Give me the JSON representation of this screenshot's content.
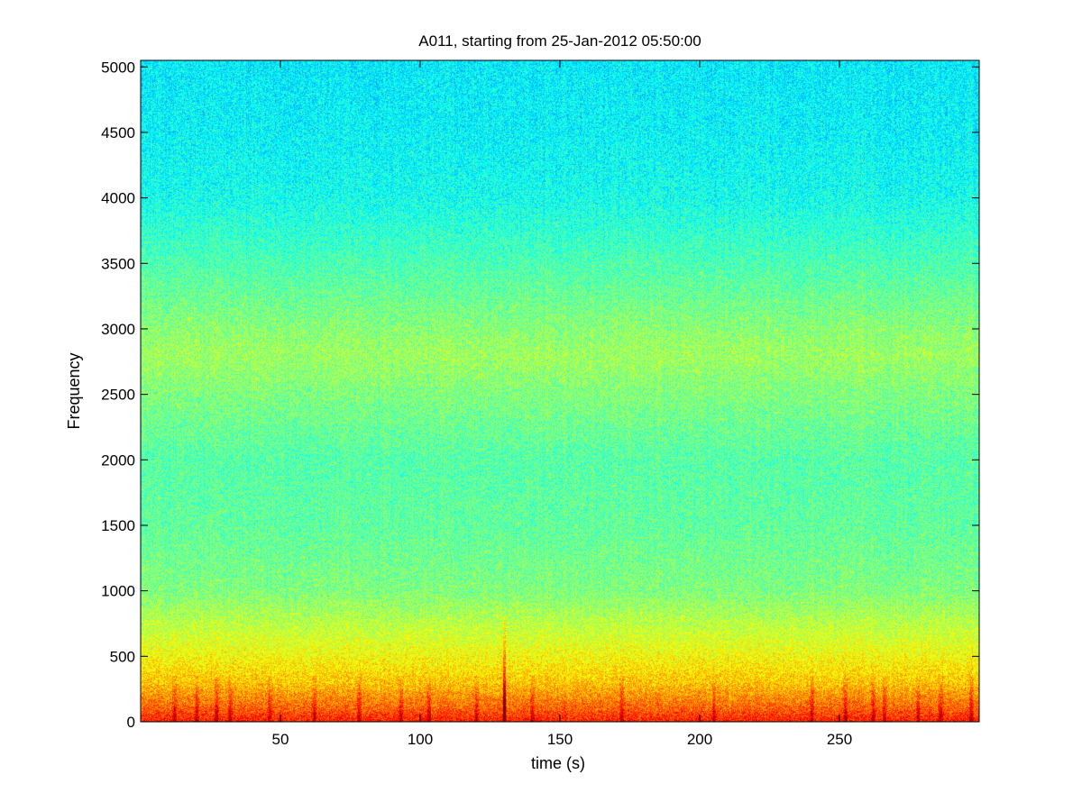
{
  "chart_data": {
    "type": "heatmap",
    "title": "A011, starting from 25-Jan-2012 05:50:00",
    "xlabel": "time (s)",
    "ylabel": "Frequency",
    "xlim": [
      0,
      300
    ],
    "ylim": [
      0,
      5050
    ],
    "x_ticks": [
      50,
      100,
      150,
      200,
      250
    ],
    "y_ticks": [
      0,
      500,
      1000,
      1500,
      2000,
      2500,
      3000,
      3500,
      4000,
      4500,
      5000
    ],
    "grid": false,
    "colormap": "jet",
    "colormap_colors": [
      "#00007f",
      "#0000ff",
      "#00ffff",
      "#ffff00",
      "#ff0000",
      "#7f0000"
    ],
    "intensity_profile_by_frequency": [
      {
        "frequency": 0,
        "level": 0.85
      },
      {
        "frequency": 100,
        "level": 0.78
      },
      {
        "frequency": 300,
        "level": 0.68
      },
      {
        "frequency": 500,
        "level": 0.62
      },
      {
        "frequency": 700,
        "level": 0.57
      },
      {
        "frequency": 1000,
        "level": 0.5
      },
      {
        "frequency": 1500,
        "level": 0.47
      },
      {
        "frequency": 2000,
        "level": 0.46
      },
      {
        "frequency": 2500,
        "level": 0.5
      },
      {
        "frequency": 2800,
        "level": 0.53
      },
      {
        "frequency": 3000,
        "level": 0.51
      },
      {
        "frequency": 3500,
        "level": 0.45
      },
      {
        "frequency": 4000,
        "level": 0.39
      },
      {
        "frequency": 4500,
        "level": 0.37
      },
      {
        "frequency": 5050,
        "level": 0.36
      }
    ],
    "transient_events_time_s": [
      12,
      20,
      27,
      32,
      46,
      62,
      78,
      93,
      103,
      120,
      130,
      140,
      172,
      205,
      240,
      252,
      262,
      266,
      278,
      286,
      297
    ],
    "strong_broadband_event": {
      "time": 130,
      "max_frequency": 800
    }
  }
}
